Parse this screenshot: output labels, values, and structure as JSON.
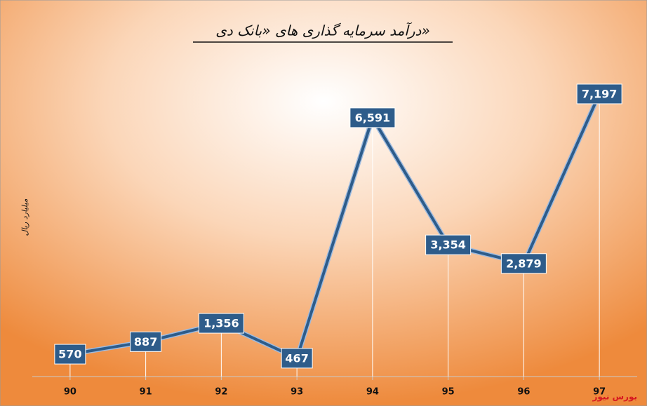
{
  "chart_data": {
    "type": "line",
    "title": "درآمد سرمایه گذاری های «بانک دی»",
    "y_label": "میلیارد ریال",
    "annotations": [
      "بورس نیوز"
    ],
    "categories": [
      "90",
      "91",
      "92",
      "93",
      "94",
      "95",
      "96",
      "97"
    ],
    "values": [
      570,
      887,
      1356,
      467,
      6591,
      3354,
      2879,
      7197
    ],
    "value_labels": [
      "570",
      "887",
      "1,356",
      "467",
      "6,591",
      "3,354",
      "2,879",
      "7,197"
    ],
    "color": "#2e5c8a",
    "ylim": [
      0,
      8000
    ]
  }
}
